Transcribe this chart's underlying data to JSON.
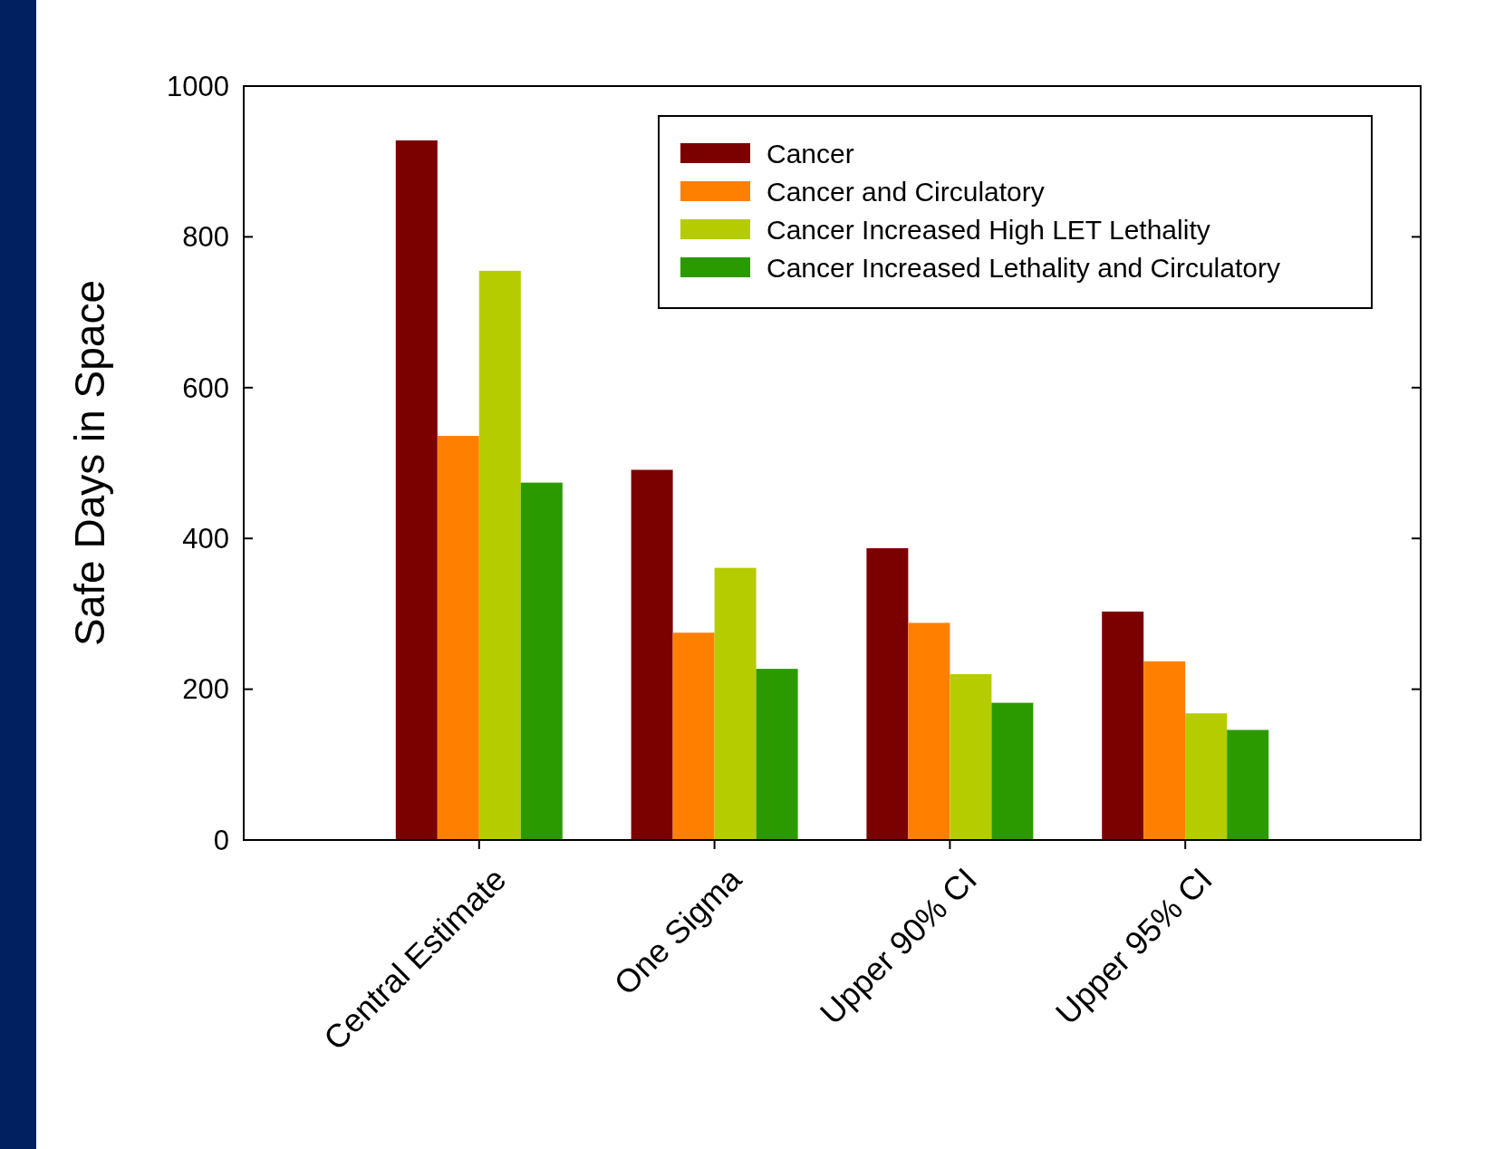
{
  "chart_data": {
    "type": "bar",
    "ylabel": "Safe Days in Space",
    "categories": [
      "Central Estimate",
      "One Sigma",
      "Upper 90% CI",
      "Upper 95% CI"
    ],
    "series": [
      {
        "name": "Cancer",
        "color": "#7b0000",
        "values": [
          928,
          491,
          387,
          303
        ]
      },
      {
        "name": "Cancer and Circulatory",
        "color": "#ff8000",
        "values": [
          536,
          275,
          288,
          237
        ]
      },
      {
        "name": "Cancer Increased High LET Lethality",
        "color": "#b5cc00",
        "values": [
          755,
          361,
          220,
          168
        ]
      },
      {
        "name": "Cancer Increased Lethality and Circulatory",
        "color": "#2a9a00",
        "values": [
          474,
          227,
          182,
          146
        ]
      }
    ],
    "ylim": [
      0,
      1000
    ],
    "yticks": [
      0,
      200,
      400,
      600,
      800,
      1000
    ],
    "legend": "top right"
  }
}
